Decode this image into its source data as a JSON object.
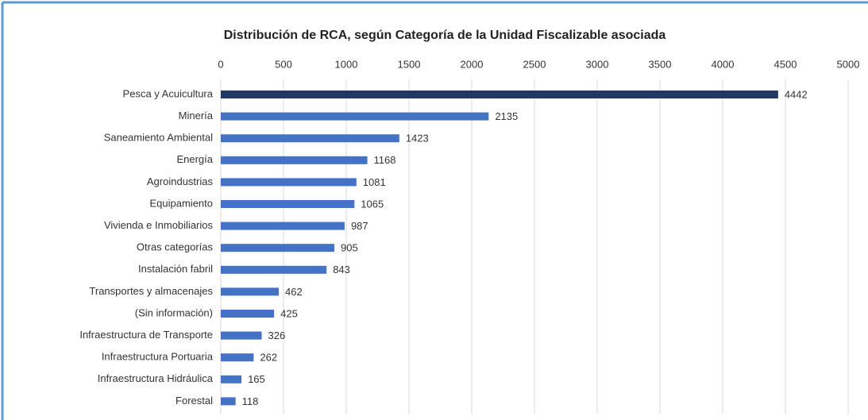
{
  "chart_data": {
    "type": "hbar",
    "title": "Distribución de RCA, según Categoría de la Unidad Fiscalizable asociada",
    "categories": [
      "Pesca y Acuicultura",
      "Minería",
      "Saneamiento Ambiental",
      "Energía",
      "Agroindustrias",
      "Equipamiento",
      "Vivienda e Inmobiliarios",
      "Otras categorías",
      "Instalación fabril",
      "Transportes y almacenajes",
      "(Sin información)",
      "Infraestructura de Transporte",
      "Infraestructura Portuaria",
      "Infraestructura Hidráulica",
      "Forestal"
    ],
    "values": [
      4442,
      2135,
      1423,
      1168,
      1081,
      1065,
      987,
      905,
      843,
      462,
      425,
      326,
      262,
      165,
      118
    ],
    "colors": [
      "#1f3864",
      "#4472c4",
      "#4472c4",
      "#4472c4",
      "#4472c4",
      "#4472c4",
      "#4472c4",
      "#4472c4",
      "#4472c4",
      "#4472c4",
      "#4472c4",
      "#4472c4",
      "#4472c4",
      "#4472c4",
      "#4472c4"
    ],
    "xlim": [
      0,
      5000
    ],
    "xticks": [
      0,
      500,
      1000,
      1500,
      2000,
      2500,
      3000,
      3500,
      4000,
      4500,
      5000
    ],
    "grid": true
  }
}
